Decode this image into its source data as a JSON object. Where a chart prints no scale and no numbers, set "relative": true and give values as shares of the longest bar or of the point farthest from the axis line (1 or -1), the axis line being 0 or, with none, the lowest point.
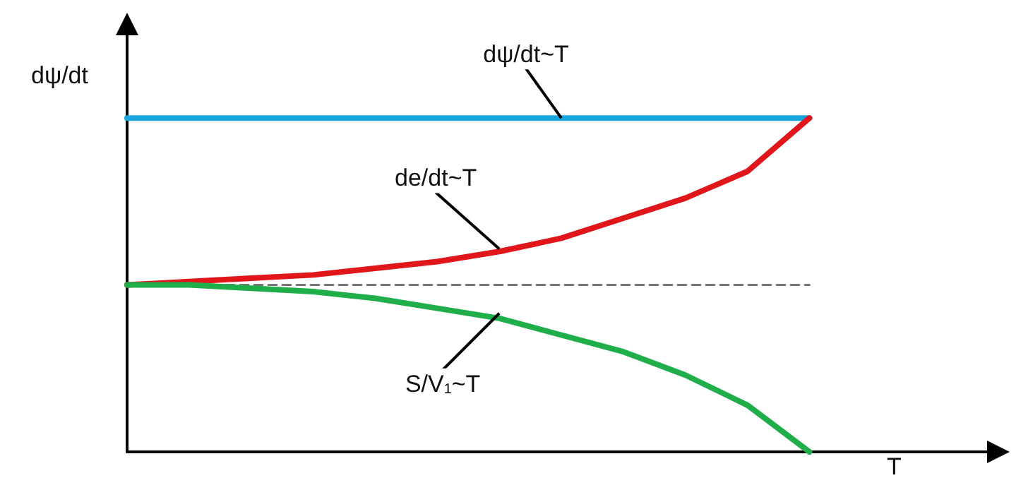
{
  "chart_data": {
    "type": "line",
    "relative": true,
    "ylabel": "dψ/dt",
    "xlabel": "T",
    "categories": [
      null,
      null,
      null,
      null,
      null,
      null,
      null,
      null,
      null,
      null,
      null,
      null
    ],
    "series": [
      {
        "color": "#1ca6e0",
        "values": [
          1,
          1,
          1,
          1,
          1,
          1,
          1,
          1,
          1,
          1,
          1,
          1
        ]
      },
      {
        "color": "#e0161b",
        "values": [
          0.5,
          0.51,
          0.52,
          0.53,
          0.55,
          0.57,
          0.6,
          0.64,
          0.7,
          0.76,
          0.84,
          1
        ]
      },
      {
        "color": "#1fae4a",
        "values": [
          0.5,
          0.5,
          0.49,
          0.48,
          0.46,
          0.43,
          0.4,
          0.35,
          0.3,
          0.23,
          0.14,
          0
        ]
      },
      {
        "color": "#777777",
        "line_style": "dashed",
        "values": [
          0.5,
          0.5,
          0.5,
          0.5,
          0.5,
          0.5,
          0.5,
          0.5,
          0.5,
          0.5,
          0.5,
          0.5
        ]
      }
    ],
    "annotations": [
      "dψ/dt~T",
      "de/dt~T",
      "S/V$_{1}$~T"
    ],
    "marker": "none",
    "line_style": "solid"
  }
}
